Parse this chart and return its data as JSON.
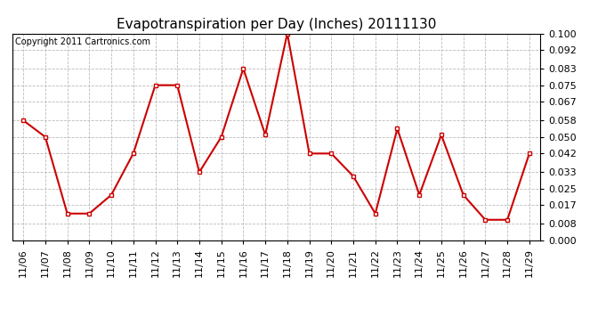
{
  "title": "Evapotranspiration per Day (Inches) 20111130",
  "copyright": "Copyright 2011 Cartronics.com",
  "dates": [
    "11/06",
    "11/07",
    "11/08",
    "11/09",
    "11/10",
    "11/11",
    "11/12",
    "11/13",
    "11/14",
    "11/15",
    "11/16",
    "11/17",
    "11/18",
    "11/19",
    "11/20",
    "11/21",
    "11/22",
    "11/23",
    "11/24",
    "11/25",
    "11/26",
    "11/27",
    "11/28",
    "11/29"
  ],
  "values": [
    0.058,
    0.05,
    0.013,
    0.013,
    0.022,
    0.042,
    0.075,
    0.075,
    0.033,
    0.05,
    0.083,
    0.051,
    0.1,
    0.042,
    0.042,
    0.031,
    0.013,
    0.054,
    0.022,
    0.051,
    0.022,
    0.01,
    0.01,
    0.042
  ],
  "line_color": "#cc0000",
  "marker": "s",
  "marker_size": 3,
  "marker_color": "#cc0000",
  "bg_color": "#ffffff",
  "grid_color": "#bbbbbb",
  "ylim": [
    0.0,
    0.1
  ],
  "yticks": [
    0.0,
    0.008,
    0.017,
    0.025,
    0.033,
    0.042,
    0.05,
    0.058,
    0.067,
    0.075,
    0.083,
    0.092,
    0.1
  ],
  "title_fontsize": 11,
  "copyright_fontsize": 7,
  "tick_fontsize": 8,
  "line_width": 1.5
}
